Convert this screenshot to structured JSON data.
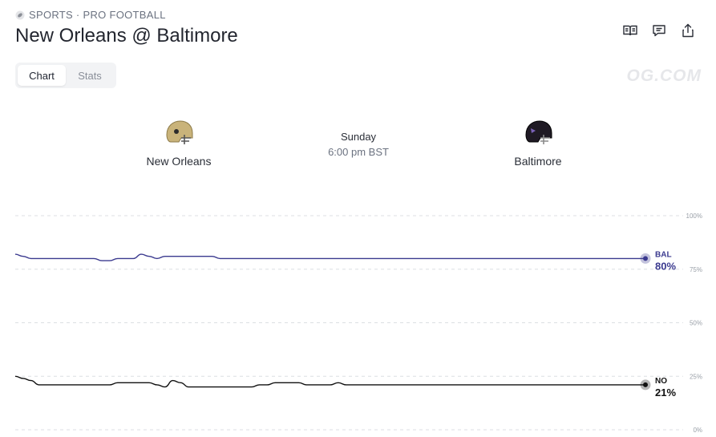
{
  "breadcrumb": {
    "text": "SPORTS · PRO FOOTBALL",
    "icon": "football-icon"
  },
  "title": "New Orleans @ Baltimore",
  "toolbar": {
    "icons": [
      "rules-book-icon",
      "comment-icon",
      "share-icon"
    ]
  },
  "tabs": [
    {
      "label": "Chart",
      "active": true
    },
    {
      "label": "Stats",
      "active": false
    }
  ],
  "watermark": "OG.COM",
  "game": {
    "away": {
      "name": "New Orleans",
      "helmet_color": "#c9b37a"
    },
    "home": {
      "name": "Baltimore",
      "helmet_color": "#1f1a24"
    },
    "day": "Sunday",
    "time": "6:00 pm BST"
  },
  "chart_data": {
    "type": "line",
    "ylim": [
      0,
      100
    ],
    "y_ticks": [
      "100%",
      "75%",
      "50%",
      "25%",
      "0%"
    ],
    "grid": true,
    "series": [
      {
        "name": "BAL",
        "color": "#3b3a8f",
        "end_label": "80%",
        "values": [
          82,
          81,
          80,
          80,
          80,
          80,
          80,
          80,
          80,
          80,
          80,
          79,
          79,
          80,
          80,
          80,
          82,
          81,
          80,
          81,
          81,
          81,
          81,
          81,
          81,
          81,
          80,
          80,
          80,
          80,
          80,
          80,
          80,
          80,
          80,
          80,
          80,
          80,
          80,
          80,
          80,
          80,
          80,
          80,
          80,
          80,
          80,
          80,
          80,
          80,
          80,
          80,
          80,
          80,
          80,
          80,
          80,
          80,
          80,
          80,
          80,
          80,
          80,
          80,
          80,
          80,
          80,
          80,
          80,
          80,
          80,
          80,
          80,
          80,
          80,
          80,
          80,
          80,
          80,
          80,
          80
        ]
      },
      {
        "name": "NO",
        "color": "#111111",
        "end_label": "21%",
        "values": [
          25,
          24,
          23,
          21,
          21,
          21,
          21,
          21,
          21,
          21,
          21,
          21,
          21,
          22,
          22,
          22,
          22,
          22,
          21,
          20,
          23,
          22,
          20,
          20,
          20,
          20,
          20,
          20,
          20,
          20,
          20,
          21,
          21,
          22,
          22,
          22,
          22,
          21,
          21,
          21,
          21,
          22,
          21,
          21,
          21,
          21,
          21,
          21,
          21,
          21,
          21,
          21,
          21,
          21,
          21,
          21,
          21,
          21,
          21,
          21,
          21,
          21,
          21,
          21,
          21,
          21,
          21,
          21,
          21,
          21,
          21,
          21,
          21,
          21,
          21,
          21,
          21,
          21,
          21,
          21,
          21
        ]
      }
    ]
  }
}
